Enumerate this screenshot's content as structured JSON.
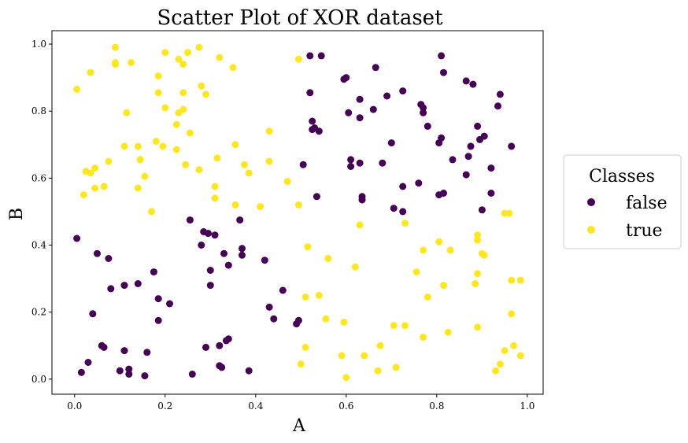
{
  "chart_data": {
    "type": "scatter",
    "title": "Scatter Plot of XOR dataset",
    "xlabel": "A",
    "ylabel": "B",
    "xlim": [
      -0.05,
      1.035
    ],
    "ylim": [
      -0.045,
      1.04
    ],
    "xticks": [
      "0.0",
      "0.2",
      "0.4",
      "0.6",
      "0.8",
      "1.0"
    ],
    "yticks": [
      "0.0",
      "0.2",
      "0.4",
      "0.6",
      "0.8",
      "1.0"
    ],
    "grid": false,
    "legend": {
      "title": "Classes",
      "placement": "outside-right"
    },
    "series": [
      {
        "name": "false",
        "color": "#440154",
        "points": [
          [
            0.52,
            0.965
          ],
          [
            0.545,
            0.965
          ],
          [
            0.665,
            0.93
          ],
          [
            0.81,
            0.965
          ],
          [
            0.815,
            0.915
          ],
          [
            0.595,
            0.895
          ],
          [
            0.6,
            0.9
          ],
          [
            0.865,
            0.89
          ],
          [
            0.88,
            0.88
          ],
          [
            0.94,
            0.85
          ],
          [
            0.52,
            0.855
          ],
          [
            0.725,
            0.86
          ],
          [
            0.69,
            0.845
          ],
          [
            0.63,
            0.835
          ],
          [
            0.765,
            0.82
          ],
          [
            0.935,
            0.815
          ],
          [
            0.77,
            0.81
          ],
          [
            0.77,
            0.795
          ],
          [
            0.66,
            0.805
          ],
          [
            0.605,
            0.795
          ],
          [
            0.525,
            0.77
          ],
          [
            0.63,
            0.78
          ],
          [
            0.53,
            0.75
          ],
          [
            0.525,
            0.745
          ],
          [
            0.54,
            0.74
          ],
          [
            0.78,
            0.755
          ],
          [
            0.89,
            0.755
          ],
          [
            0.81,
            0.72
          ],
          [
            0.905,
            0.725
          ],
          [
            0.895,
            0.715
          ],
          [
            0.7,
            0.705
          ],
          [
            0.805,
            0.705
          ],
          [
            0.875,
            0.695
          ],
          [
            0.965,
            0.695
          ],
          [
            0.87,
            0.665
          ],
          [
            0.61,
            0.655
          ],
          [
            0.835,
            0.655
          ],
          [
            0.63,
            0.645
          ],
          [
            0.68,
            0.645
          ],
          [
            0.505,
            0.64
          ],
          [
            0.61,
            0.635
          ],
          [
            0.92,
            0.63
          ],
          [
            0.865,
            0.61
          ],
          [
            0.76,
            0.585
          ],
          [
            0.725,
            0.575
          ],
          [
            0.815,
            0.555
          ],
          [
            0.805,
            0.55
          ],
          [
            0.92,
            0.555
          ],
          [
            0.535,
            0.545
          ],
          [
            0.635,
            0.545
          ],
          [
            0.635,
            0.535
          ],
          [
            0.705,
            0.51
          ],
          [
            0.725,
            0.5
          ],
          [
            0.9,
            0.505
          ],
          [
            0.005,
            0.42
          ],
          [
            0.255,
            0.475
          ],
          [
            0.365,
            0.475
          ],
          [
            0.285,
            0.44
          ],
          [
            0.295,
            0.435
          ],
          [
            0.31,
            0.43
          ],
          [
            0.28,
            0.4
          ],
          [
            0.37,
            0.39
          ],
          [
            0.05,
            0.375
          ],
          [
            0.33,
            0.375
          ],
          [
            0.37,
            0.37
          ],
          [
            0.075,
            0.36
          ],
          [
            0.42,
            0.355
          ],
          [
            0.34,
            0.34
          ],
          [
            0.3,
            0.325
          ],
          [
            0.175,
            0.32
          ],
          [
            0.11,
            0.28
          ],
          [
            0.14,
            0.285
          ],
          [
            0.3,
            0.28
          ],
          [
            0.08,
            0.27
          ],
          [
            0.46,
            0.265
          ],
          [
            0.185,
            0.24
          ],
          [
            0.21,
            0.225
          ],
          [
            0.43,
            0.215
          ],
          [
            0.04,
            0.195
          ],
          [
            0.44,
            0.18
          ],
          [
            0.185,
            0.175
          ],
          [
            0.495,
            0.175
          ],
          [
            0.49,
            0.165
          ],
          [
            0.34,
            0.12
          ],
          [
            0.335,
            0.115
          ],
          [
            0.06,
            0.1
          ],
          [
            0.065,
            0.095
          ],
          [
            0.29,
            0.095
          ],
          [
            0.32,
            0.1
          ],
          [
            0.11,
            0.085
          ],
          [
            0.16,
            0.08
          ],
          [
            0.03,
            0.05
          ],
          [
            0.32,
            0.04
          ],
          [
            0.325,
            0.035
          ],
          [
            0.1,
            0.025
          ],
          [
            0.12,
            0.03
          ],
          [
            0.015,
            0.02
          ],
          [
            0.12,
            0.015
          ],
          [
            0.155,
            0.01
          ],
          [
            0.26,
            0.015
          ],
          [
            0.385,
            0.025
          ]
        ]
      },
      {
        "name": "true",
        "color": "#fde725",
        "points": [
          [
            0.09,
            0.99
          ],
          [
            0.275,
            0.99
          ],
          [
            0.2,
            0.975
          ],
          [
            0.25,
            0.975
          ],
          [
            0.23,
            0.955
          ],
          [
            0.32,
            0.96
          ],
          [
            0.495,
            0.955
          ],
          [
            0.035,
            0.915
          ],
          [
            0.09,
            0.94
          ],
          [
            0.09,
            0.945
          ],
          [
            0.125,
            0.945
          ],
          [
            0.24,
            0.94
          ],
          [
            0.35,
            0.93
          ],
          [
            0.005,
            0.865
          ],
          [
            0.185,
            0.905
          ],
          [
            0.28,
            0.875
          ],
          [
            0.185,
            0.855
          ],
          [
            0.24,
            0.855
          ],
          [
            0.29,
            0.85
          ],
          [
            0.2,
            0.81
          ],
          [
            0.24,
            0.805
          ],
          [
            0.23,
            0.795
          ],
          [
            0.115,
            0.795
          ],
          [
            0.225,
            0.76
          ],
          [
            0.255,
            0.735
          ],
          [
            0.43,
            0.74
          ],
          [
            0.18,
            0.71
          ],
          [
            0.11,
            0.695
          ],
          [
            0.14,
            0.695
          ],
          [
            0.195,
            0.695
          ],
          [
            0.355,
            0.7
          ],
          [
            0.225,
            0.685
          ],
          [
            0.315,
            0.66
          ],
          [
            0.145,
            0.655
          ],
          [
            0.075,
            0.65
          ],
          [
            0.245,
            0.64
          ],
          [
            0.375,
            0.64
          ],
          [
            0.43,
            0.65
          ],
          [
            0.025,
            0.62
          ],
          [
            0.035,
            0.615
          ],
          [
            0.045,
            0.63
          ],
          [
            0.275,
            0.625
          ],
          [
            0.385,
            0.615
          ],
          [
            0.155,
            0.605
          ],
          [
            0.47,
            0.59
          ],
          [
            0.065,
            0.575
          ],
          [
            0.045,
            0.57
          ],
          [
            0.14,
            0.57
          ],
          [
            0.31,
            0.575
          ],
          [
            0.02,
            0.55
          ],
          [
            0.31,
            0.54
          ],
          [
            0.355,
            0.52
          ],
          [
            0.41,
            0.515
          ],
          [
            0.495,
            0.52
          ],
          [
            0.17,
            0.5
          ],
          [
            0.95,
            0.495
          ],
          [
            0.96,
            0.495
          ],
          [
            0.63,
            0.46
          ],
          [
            0.73,
            0.465
          ],
          [
            0.89,
            0.43
          ],
          [
            0.89,
            0.415
          ],
          [
            0.805,
            0.41
          ],
          [
            0.515,
            0.395
          ],
          [
            0.77,
            0.385
          ],
          [
            0.83,
            0.385
          ],
          [
            0.9,
            0.375
          ],
          [
            0.905,
            0.37
          ],
          [
            0.56,
            0.36
          ],
          [
            0.62,
            0.335
          ],
          [
            0.755,
            0.32
          ],
          [
            0.89,
            0.315
          ],
          [
            0.965,
            0.295
          ],
          [
            0.985,
            0.295
          ],
          [
            0.885,
            0.285
          ],
          [
            0.815,
            0.28
          ],
          [
            0.78,
            0.245
          ],
          [
            0.51,
            0.245
          ],
          [
            0.54,
            0.25
          ],
          [
            0.965,
            0.195
          ],
          [
            0.555,
            0.18
          ],
          [
            0.595,
            0.17
          ],
          [
            0.705,
            0.16
          ],
          [
            0.73,
            0.16
          ],
          [
            0.89,
            0.155
          ],
          [
            0.77,
            0.125
          ],
          [
            0.825,
            0.14
          ],
          [
            0.51,
            0.095
          ],
          [
            0.675,
            0.1
          ],
          [
            0.97,
            0.1
          ],
          [
            0.95,
            0.085
          ],
          [
            0.59,
            0.07
          ],
          [
            0.64,
            0.07
          ],
          [
            0.985,
            0.07
          ],
          [
            0.5,
            0.045
          ],
          [
            0.94,
            0.045
          ],
          [
            0.71,
            0.035
          ],
          [
            0.67,
            0.025
          ],
          [
            0.93,
            0.025
          ],
          [
            0.6,
            0.005
          ]
        ]
      }
    ]
  }
}
